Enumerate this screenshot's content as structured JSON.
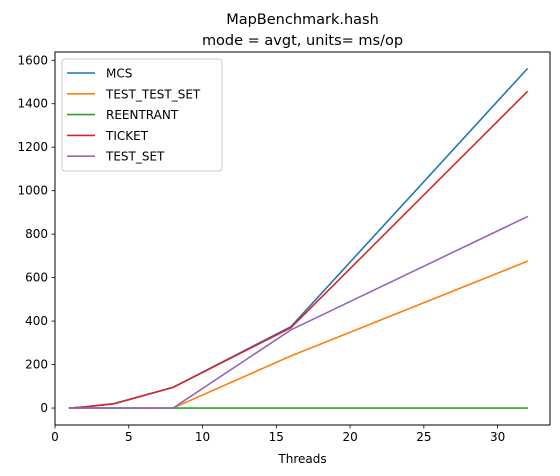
{
  "chart_data": {
    "type": "line",
    "title": "MapBenchmark.hash",
    "subtitle": "mode = avgt, units= ms/op",
    "xlabel": "Threads",
    "ylabel": "",
    "xlim": [
      0,
      33.55
    ],
    "ylim": [
      -78,
      1638
    ],
    "xticks": [
      0,
      5,
      10,
      15,
      20,
      25,
      30
    ],
    "yticks": [
      0,
      200,
      400,
      600,
      800,
      1000,
      1200,
      1400,
      1600
    ],
    "x": [
      1,
      2,
      4,
      8,
      16,
      32
    ],
    "legend": "top-left",
    "grid": false,
    "series": [
      {
        "name": "MCS",
        "color": "#1f77b4",
        "values": [
          0,
          5,
          20,
          95,
          375,
          1560
        ]
      },
      {
        "name": "TEST_TEST_SET",
        "color": "#ff7f0e",
        "values": [
          0,
          0,
          0,
          0,
          240,
          675
        ]
      },
      {
        "name": "REENTRANT",
        "color": "#2ca02c",
        "values": [
          0,
          0,
          0,
          0,
          0,
          0
        ]
      },
      {
        "name": "TICKET",
        "color": "#d62728",
        "values": [
          0,
          5,
          20,
          95,
          370,
          1455
        ]
      },
      {
        "name": "TEST_SET",
        "color": "#9467bd",
        "values": [
          0,
          0,
          0,
          0,
          360,
          880
        ]
      }
    ]
  }
}
